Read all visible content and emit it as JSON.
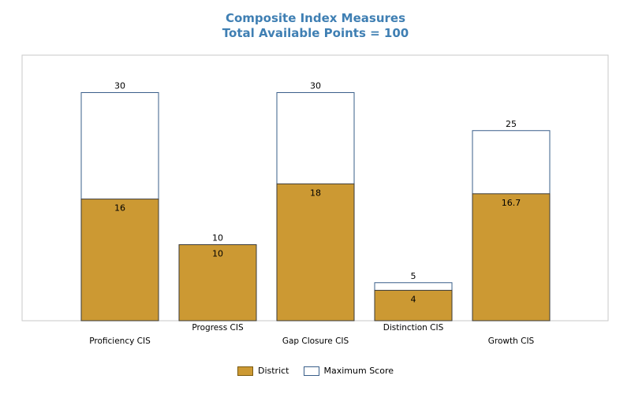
{
  "chart_data": {
    "type": "bar",
    "title": "Composite Index Measures",
    "subtitle": "Total Available Points = 100",
    "categories": [
      "Proficiency CIS",
      "Progress CIS",
      "Gap Closure CIS",
      "Distinction CIS",
      "Growth CIS"
    ],
    "series": [
      {
        "name": "District",
        "values": [
          16,
          10,
          18,
          4,
          16.7
        ],
        "color": "#cc9933"
      },
      {
        "name": "Maximum Score",
        "values": [
          30,
          10,
          30,
          5,
          25
        ],
        "color": "#ffffff",
        "stroke": "#3a5f8a"
      }
    ],
    "value_labels": {
      "district": [
        "16",
        "10",
        "18",
        "4",
        "16.7"
      ],
      "maximum": [
        "30",
        "10",
        "30",
        "5",
        "25"
      ]
    },
    "ylim": [
      0,
      30
    ],
    "grid": false,
    "legend": "bottom-center",
    "overlap": true
  }
}
